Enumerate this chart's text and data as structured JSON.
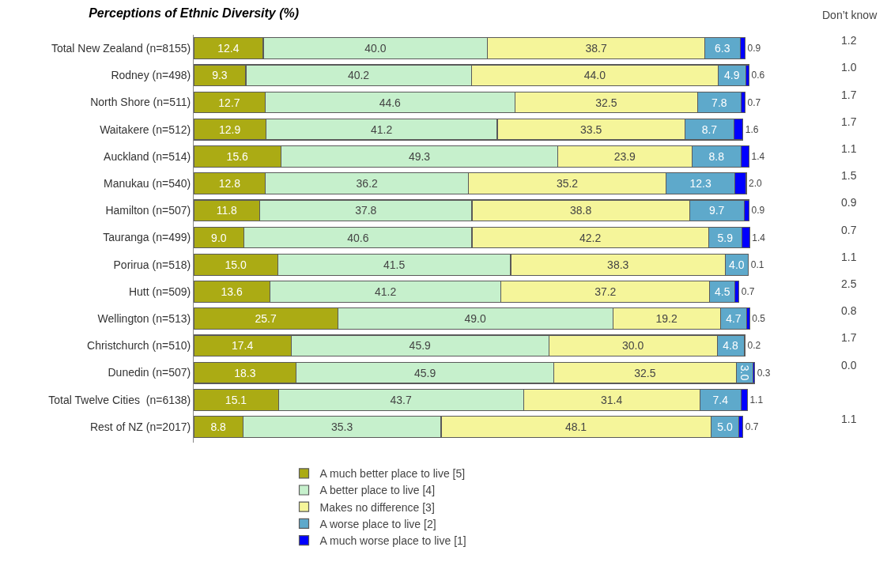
{
  "chart_data": {
    "type": "bar",
    "orientation": "horizontal",
    "stacked": true,
    "title": "Perceptions of Ethnic Diversity (%)",
    "categories": [
      "Total New Zealand (n=8155)",
      "Rodney (n=498)",
      "North Shore (n=511)",
      "Waitakere (n=512)",
      "Auckland (n=514)",
      "Manukau (n=540)",
      "Hamilton (n=507)",
      "Tauranga (n=499)",
      "Porirua (n=518)",
      "Hutt (n=509)",
      "Wellington (n=513)",
      "Christchurch (n=510)",
      "Dunedin (n=507)",
      "Total Twelve Cities  (n=6138)",
      "Rest of NZ (n=2017)"
    ],
    "series": [
      {
        "name": "A much better place to live [5]",
        "color": "#abab14",
        "values": [
          12.4,
          9.3,
          12.7,
          12.9,
          15.6,
          12.8,
          11.8,
          9.0,
          15.0,
          13.6,
          25.7,
          17.4,
          18.3,
          15.1,
          8.8
        ],
        "value_labels": [
          "12.4",
          "9.3",
          "12.7",
          "12.9",
          "15.6",
          "12.8",
          "11.8",
          "9.0",
          "15.0",
          "13.6",
          "25.7",
          "17.4",
          "18.3",
          "15.1",
          "8.8"
        ]
      },
      {
        "name": "A better place to live [4]",
        "color": "#c6f0cc",
        "values": [
          40.0,
          40.2,
          44.6,
          41.2,
          49.3,
          36.2,
          37.8,
          40.6,
          41.5,
          41.2,
          49.0,
          45.9,
          45.9,
          43.7,
          35.3
        ],
        "value_labels": [
          "40.0",
          "40.2",
          "44.6",
          "41.2",
          "49.3",
          "36.2",
          "37.8",
          "40.6",
          "41.5",
          "41.2",
          "49.0",
          "45.9",
          "45.9",
          "43.7",
          "35.3"
        ]
      },
      {
        "name": "Makes no difference [3]",
        "color": "#f5f59a",
        "values": [
          38.7,
          44.0,
          32.5,
          33.5,
          23.9,
          35.2,
          38.8,
          42.2,
          38.3,
          37.2,
          19.2,
          30.0,
          32.5,
          31.4,
          48.1
        ],
        "value_labels": [
          "38.7",
          "44.0",
          "32.5",
          "33.5",
          "23.9",
          "35.2",
          "38.8",
          "42.2",
          "38.3",
          "37.2",
          "19.2",
          "30.0",
          "32.5",
          "31.4",
          "48.1"
        ]
      },
      {
        "name": "A worse place to live [2]",
        "color": "#5ea9cb",
        "values": [
          6.3,
          4.9,
          7.8,
          8.7,
          8.8,
          12.3,
          9.7,
          5.9,
          4.0,
          4.5,
          4.7,
          4.8,
          3.0,
          7.4,
          5.0
        ],
        "value_labels": [
          "6.3",
          "4.9",
          "7.8",
          "8.7",
          "8.8",
          "12.3",
          "9.7",
          "5.9",
          "4.0",
          "4.5",
          "4.7",
          "4.8",
          "3.0",
          "7.4",
          "5.0"
        ]
      },
      {
        "name": "A much worse place to live [1]",
        "color": "#0000ff",
        "values": [
          0.9,
          0.6,
          0.7,
          1.6,
          1.4,
          2.0,
          0.9,
          1.4,
          0.1,
          0.7,
          0.5,
          0.2,
          0.3,
          1.1,
          0.7
        ],
        "value_labels": [
          "0.9",
          "0.6",
          "0.7",
          "1.6",
          "1.4",
          "2.0",
          "0.9",
          "1.4",
          "0.1",
          "0.7",
          "0.5",
          "0.2",
          "0.3",
          "1.1",
          "0.7"
        ]
      }
    ],
    "legend": "bottom",
    "tick_labels": "y",
    "annotations": [
      "Don’t know",
      "1.2",
      "1.0",
      "1.7",
      "1.7",
      "1.1",
      "1.5",
      "0.9",
      "0.7",
      "1.1",
      "2.5",
      "0.8",
      "1.7",
      "0.0",
      null,
      "1.1"
    ]
  }
}
